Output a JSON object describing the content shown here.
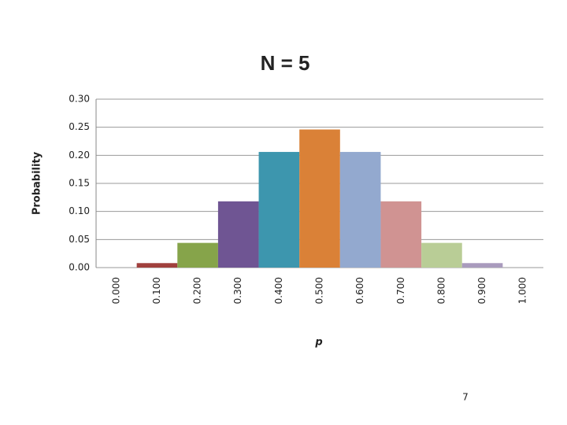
{
  "chart_data": {
    "type": "bar",
    "title": "N = 5",
    "x_label": "p",
    "y_label": "Probability",
    "categories": [
      "0.000",
      "0.100",
      "0.200",
      "0.300",
      "0.400",
      "0.500",
      "0.600",
      "0.700",
      "0.800",
      "0.900",
      "1.000"
    ],
    "values": [
      0,
      0.008,
      0.044,
      0.118,
      0.206,
      0.246,
      0.206,
      0.118,
      0.044,
      0.008,
      0
    ],
    "colors": [
      "#4f81bd",
      "#a0403d",
      "#86a44a",
      "#6f5593",
      "#3d96ae",
      "#da8137",
      "#93a9cf",
      "#d09392",
      "#b9cd96",
      "#a99bbd",
      "#4f81bd"
    ],
    "ylim": [
      0,
      0.3
    ],
    "yticks": [
      {
        "value": 0,
        "label": "0.00"
      },
      {
        "value": 0.05,
        "label": "0.05"
      },
      {
        "value": 0.1,
        "label": "0.10"
      },
      {
        "value": 0.15,
        "label": "0.15"
      },
      {
        "value": 0.2,
        "label": "0.20"
      },
      {
        "value": 0.25,
        "label": "0.25"
      },
      {
        "value": 0.3,
        "label": "0.30"
      }
    ],
    "grid": true
  },
  "page_number": "7"
}
